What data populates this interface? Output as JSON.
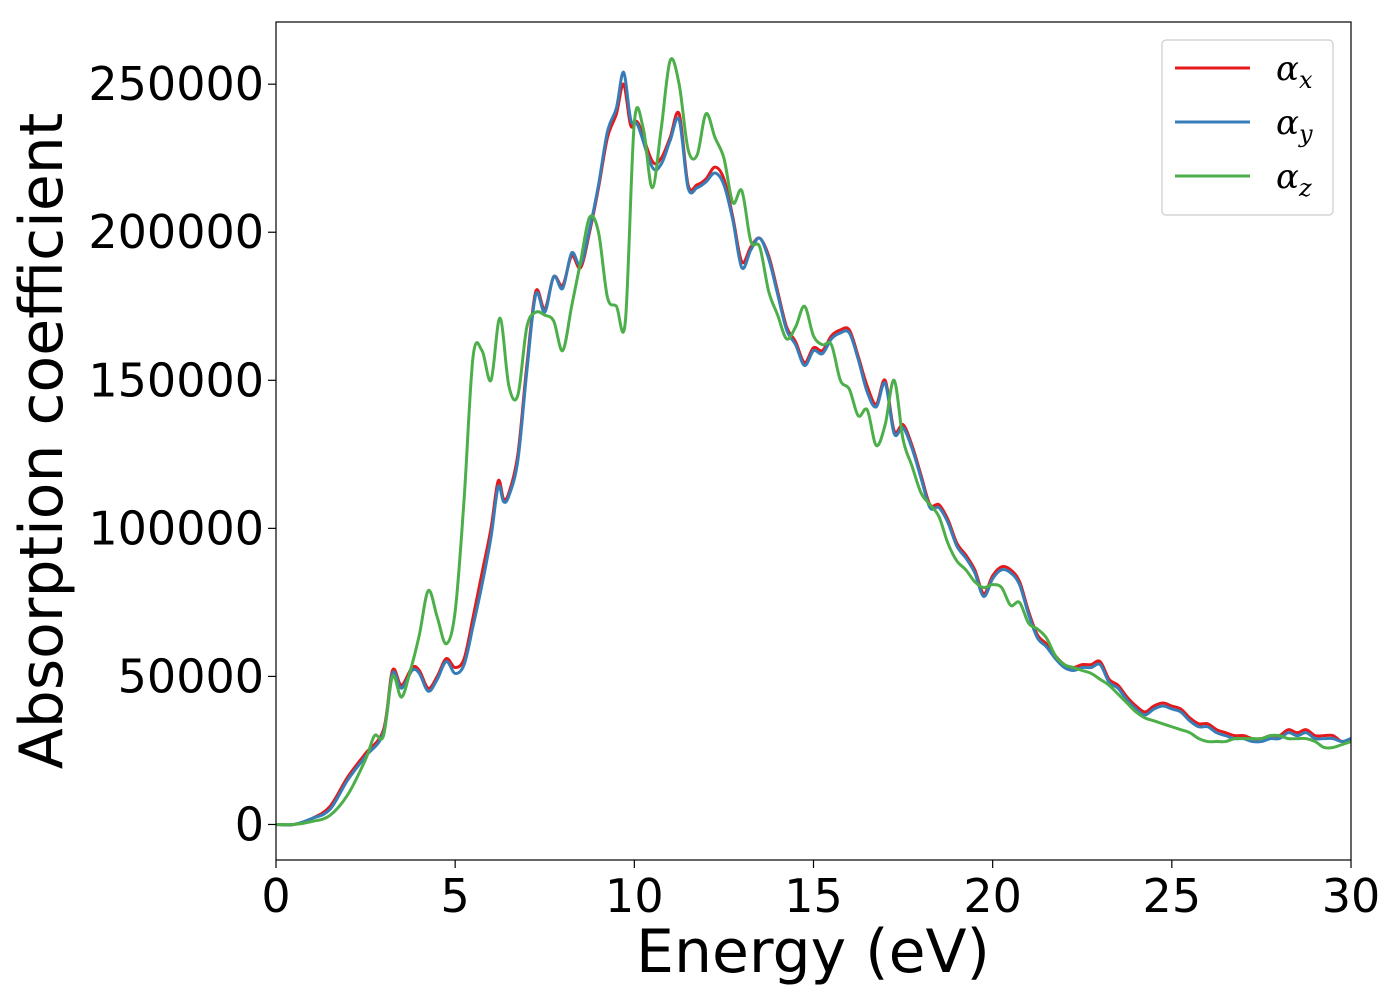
{
  "chart_data": {
    "type": "line",
    "title": "",
    "xlabel": "Energy (eV)",
    "ylabel": "Absorption coefficient",
    "xlim": [
      0,
      30
    ],
    "ylim": [
      -12000,
      271000
    ],
    "xticks": [
      0,
      5,
      10,
      15,
      20,
      25,
      30
    ],
    "yticks": [
      0,
      50000,
      100000,
      150000,
      200000,
      250000
    ],
    "grid": false,
    "legend_position": "top-right",
    "series": [
      {
        "name": "α_x",
        "label_base": "α",
        "label_sub": "x",
        "color": "#e41a1c",
        "x": [
          0,
          0.5,
          1.0,
          1.5,
          2.0,
          2.5,
          3.0,
          3.25,
          3.5,
          3.8,
          4.0,
          4.25,
          4.5,
          4.75,
          5.0,
          5.25,
          5.5,
          5.75,
          6.0,
          6.2,
          6.35,
          6.5,
          6.75,
          7.0,
          7.25,
          7.5,
          7.75,
          8.0,
          8.25,
          8.5,
          8.75,
          9.0,
          9.25,
          9.5,
          9.7,
          9.9,
          10.1,
          10.5,
          10.75,
          11.0,
          11.25,
          11.5,
          11.75,
          12.0,
          12.25,
          12.5,
          12.75,
          13.0,
          13.25,
          13.5,
          13.75,
          14.0,
          14.25,
          14.5,
          14.75,
          15.0,
          15.25,
          15.5,
          15.75,
          16.0,
          16.25,
          16.5,
          16.75,
          17.0,
          17.25,
          17.5,
          17.75,
          18.0,
          18.25,
          18.5,
          18.75,
          19.0,
          19.25,
          19.5,
          19.75,
          20.0,
          20.25,
          20.5,
          20.75,
          21.0,
          21.25,
          21.5,
          21.75,
          22.0,
          22.25,
          22.5,
          22.75,
          23.0,
          23.25,
          23.5,
          23.75,
          24.0,
          24.25,
          24.5,
          24.75,
          25.0,
          25.25,
          25.5,
          25.75,
          26.0,
          26.25,
          26.5,
          26.75,
          27.0,
          27.25,
          27.5,
          27.75,
          28.0,
          28.25,
          28.5,
          28.75,
          29.0,
          29.25,
          29.5,
          29.75,
          30.0
        ],
        "y": [
          0,
          0,
          2000,
          6000,
          16000,
          24000,
          32000,
          52000,
          47000,
          53000,
          52000,
          46000,
          50000,
          56000,
          53000,
          56000,
          70000,
          85000,
          100000,
          116000,
          110000,
          112000,
          125000,
          155000,
          180000,
          174000,
          185000,
          182000,
          192000,
          188000,
          200000,
          215000,
          232000,
          240000,
          250000,
          236000,
          237000,
          224000,
          225000,
          232000,
          240000,
          216000,
          216000,
          218000,
          222000,
          218000,
          205000,
          190000,
          195000,
          198000,
          192000,
          180000,
          168000,
          163000,
          156000,
          161000,
          160000,
          165000,
          167000,
          167000,
          158000,
          148000,
          142000,
          150000,
          133000,
          135000,
          128000,
          118000,
          108000,
          108000,
          103000,
          95000,
          91000,
          86000,
          78000,
          84000,
          87000,
          86000,
          82000,
          72000,
          64000,
          61000,
          57000,
          54000,
          53000,
          54000,
          54000,
          55000,
          49000,
          47000,
          43000,
          40000,
          38000,
          40000,
          41000,
          40000,
          39000,
          36000,
          34000,
          34000,
          32000,
          31000,
          30000,
          30000,
          29000,
          29000,
          30000,
          30000,
          32000,
          31000,
          32000,
          30000,
          30000,
          30000,
          28000,
          29000
        ]
      },
      {
        "name": "α_y",
        "label_base": "α",
        "label_sub": "y",
        "color": "#377eb8",
        "x": [
          0,
          0.5,
          1.0,
          1.5,
          2.0,
          2.5,
          3.0,
          3.25,
          3.5,
          3.8,
          4.0,
          4.25,
          4.5,
          4.75,
          5.0,
          5.25,
          5.5,
          5.75,
          6.0,
          6.2,
          6.35,
          6.5,
          6.75,
          7.0,
          7.25,
          7.5,
          7.75,
          8.0,
          8.25,
          8.5,
          8.75,
          9.0,
          9.25,
          9.5,
          9.7,
          9.9,
          10.1,
          10.5,
          10.75,
          11.0,
          11.25,
          11.5,
          11.75,
          12.0,
          12.25,
          12.5,
          12.75,
          13.0,
          13.25,
          13.5,
          13.75,
          14.0,
          14.25,
          14.5,
          14.75,
          15.0,
          15.25,
          15.5,
          15.75,
          16.0,
          16.25,
          16.5,
          16.75,
          17.0,
          17.25,
          17.5,
          17.75,
          18.0,
          18.25,
          18.5,
          18.75,
          19.0,
          19.25,
          19.5,
          19.75,
          20.0,
          20.25,
          20.5,
          20.75,
          21.0,
          21.25,
          21.5,
          21.75,
          22.0,
          22.25,
          22.5,
          22.75,
          23.0,
          23.25,
          23.5,
          23.75,
          24.0,
          24.25,
          24.5,
          24.75,
          25.0,
          25.25,
          25.5,
          25.75,
          26.0,
          26.25,
          26.5,
          26.75,
          27.0,
          27.25,
          27.5,
          27.75,
          28.0,
          28.25,
          28.5,
          28.75,
          29.0,
          29.25,
          29.5,
          29.75,
          30.0
        ],
        "y": [
          0,
          0,
          2000,
          5000,
          15000,
          23000,
          31000,
          51000,
          46000,
          52000,
          51000,
          45000,
          49000,
          55000,
          51000,
          54000,
          67000,
          81000,
          97000,
          114000,
          109000,
          111000,
          123000,
          153000,
          179000,
          173000,
          185000,
          181000,
          193000,
          189000,
          201000,
          216000,
          234000,
          242000,
          254000,
          238000,
          236000,
          222000,
          223000,
          231000,
          238000,
          215000,
          215000,
          217000,
          220000,
          216000,
          204000,
          188000,
          194000,
          198000,
          191000,
          179000,
          167000,
          162000,
          155000,
          160000,
          159000,
          164000,
          166000,
          166000,
          157000,
          146000,
          141000,
          149000,
          132000,
          134000,
          127000,
          117000,
          107000,
          107000,
          102000,
          94000,
          90000,
          85000,
          77000,
          83000,
          86000,
          85000,
          81000,
          71000,
          63000,
          60000,
          56000,
          53000,
          52000,
          53000,
          53000,
          54000,
          48000,
          46000,
          42000,
          39000,
          37000,
          39000,
          40000,
          39000,
          38000,
          35000,
          33000,
          33000,
          31000,
          30000,
          29000,
          29000,
          28000,
          28000,
          29000,
          29000,
          31000,
          30000,
          31000,
          29000,
          29000,
          29000,
          28000,
          29000
        ]
      },
      {
        "name": "α_z",
        "label_base": "α",
        "label_sub": "z",
        "color": "#4daf4a",
        "x": [
          0,
          0.5,
          1.0,
          1.5,
          2.0,
          2.5,
          2.75,
          3.0,
          3.25,
          3.5,
          3.75,
          4.0,
          4.25,
          4.5,
          4.75,
          5.0,
          5.25,
          5.5,
          5.75,
          6.0,
          6.25,
          6.5,
          6.75,
          7.0,
          7.25,
          7.5,
          7.75,
          8.0,
          8.25,
          8.5,
          8.75,
          9.0,
          9.25,
          9.5,
          9.75,
          10.0,
          10.25,
          10.5,
          10.75,
          11.0,
          11.25,
          11.5,
          11.75,
          12.0,
          12.25,
          12.5,
          12.75,
          13.0,
          13.25,
          13.5,
          13.75,
          14.0,
          14.25,
          14.5,
          14.75,
          15.0,
          15.25,
          15.5,
          15.75,
          16.0,
          16.25,
          16.5,
          16.75,
          17.0,
          17.25,
          17.5,
          17.75,
          18.0,
          18.25,
          18.5,
          18.75,
          19.0,
          19.25,
          19.5,
          19.75,
          20.0,
          20.25,
          20.5,
          20.75,
          21.0,
          21.25,
          21.5,
          21.75,
          22.0,
          22.25,
          22.5,
          22.75,
          23.0,
          23.25,
          23.5,
          23.75,
          24.0,
          24.25,
          24.5,
          24.75,
          25.0,
          25.25,
          25.5,
          25.75,
          26.0,
          26.25,
          26.5,
          26.75,
          27.0,
          27.25,
          27.5,
          27.75,
          28.0,
          28.25,
          28.5,
          28.75,
          29.0,
          29.25,
          29.5,
          29.75,
          30.0
        ],
        "y": [
          0,
          0,
          1000,
          3000,
          10000,
          22000,
          30000,
          30000,
          50000,
          43000,
          52000,
          64000,
          79000,
          70000,
          61000,
          72000,
          110000,
          158000,
          160000,
          150000,
          171000,
          148000,
          145000,
          168000,
          173000,
          172000,
          170000,
          160000,
          175000,
          190000,
          205000,
          200000,
          178000,
          175000,
          170000,
          237000,
          235000,
          215000,
          235000,
          258000,
          250000,
          228000,
          226000,
          240000,
          232000,
          225000,
          210000,
          214000,
          197000,
          195000,
          180000,
          172000,
          164000,
          168000,
          175000,
          165000,
          162000,
          162000,
          150000,
          147000,
          138000,
          140000,
          128000,
          135000,
          150000,
          130000,
          121000,
          112000,
          108000,
          104000,
          95000,
          89000,
          86000,
          82000,
          80000,
          81000,
          80000,
          74000,
          75000,
          68000,
          66000,
          63000,
          57000,
          54000,
          53000,
          52000,
          51000,
          49000,
          47000,
          44000,
          41000,
          38000,
          36000,
          35000,
          34000,
          33000,
          32000,
          31000,
          29000,
          28000,
          28000,
          28000,
          29000,
          29000,
          29000,
          29000,
          30000,
          30000,
          29000,
          29000,
          29000,
          28000,
          26000,
          26000,
          27000,
          28000
        ]
      }
    ]
  }
}
